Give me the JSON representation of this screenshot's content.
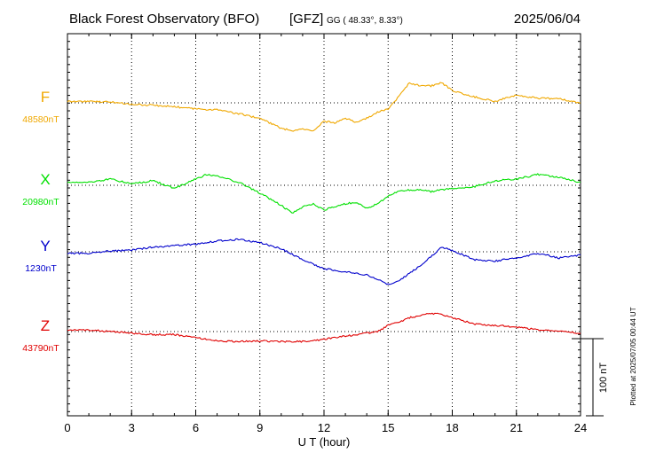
{
  "header": {
    "title": "Black Forest Observatory (BFO)",
    "institute": "[GFZ]",
    "coords": "GG ( 48.33°,   8.33°)",
    "date": "2025/06/04"
  },
  "footer": {
    "xlabel": "U T (hour)",
    "plotted_note": "Plotted at 2025/07/05 00:44 UT",
    "scale_label": "100 nT"
  },
  "chart_data": {
    "type": "line",
    "title": "Black Forest Observatory (BFO)",
    "xlabel": "U T (hour)",
    "ylabel": "",
    "xlim": [
      0,
      24
    ],
    "x_ticks": [
      0,
      3,
      6,
      9,
      12,
      15,
      18,
      21,
      24
    ],
    "x_tick_labels": [
      "0",
      "3",
      "6",
      "9",
      "12",
      "15",
      "18",
      "21",
      "24"
    ],
    "y_unit": "nT",
    "scale_bar_nT": 100,
    "grid": true,
    "series": [
      {
        "name": "F",
        "baseline_label": "48580nT",
        "baseline_nT": 48580,
        "color": "#f0a800",
        "points": [
          [
            0,
            48582
          ],
          [
            1,
            48582
          ],
          [
            2,
            48581
          ],
          [
            3,
            48578
          ],
          [
            4,
            48577
          ],
          [
            5,
            48575
          ],
          [
            6,
            48572
          ],
          [
            7,
            48571
          ],
          [
            8,
            48566
          ],
          [
            9,
            48560
          ],
          [
            10,
            48547
          ],
          [
            10.5,
            48544
          ],
          [
            11,
            48546
          ],
          [
            11.5,
            48543
          ],
          [
            12,
            48556
          ],
          [
            12.5,
            48554
          ],
          [
            13,
            48560
          ],
          [
            13.5,
            48555
          ],
          [
            14,
            48560
          ],
          [
            14.5,
            48568
          ],
          [
            15,
            48572
          ],
          [
            15.5,
            48588
          ],
          [
            16,
            48606
          ],
          [
            16.5,
            48602
          ],
          [
            17,
            48602
          ],
          [
            17.5,
            48606
          ],
          [
            18,
            48596
          ],
          [
            18.5,
            48592
          ],
          [
            19,
            48588
          ],
          [
            20,
            48582
          ],
          [
            21,
            48590
          ],
          [
            22,
            48586
          ],
          [
            23,
            48585
          ],
          [
            24,
            48580
          ]
        ]
      },
      {
        "name": "X",
        "baseline_label": "20980nT",
        "baseline_nT": 20980,
        "color": "#00e000",
        "points": [
          [
            0,
            20984
          ],
          [
            1,
            20984
          ],
          [
            2,
            20988
          ],
          [
            3,
            20982
          ],
          [
            4,
            20986
          ],
          [
            5,
            20976
          ],
          [
            6,
            20988
          ],
          [
            6.5,
            20994
          ],
          [
            7,
            20992
          ],
          [
            8,
            20984
          ],
          [
            9,
            20970
          ],
          [
            10,
            20954
          ],
          [
            10.5,
            20944
          ],
          [
            11,
            20952
          ],
          [
            11.5,
            20956
          ],
          [
            12,
            20948
          ],
          [
            13,
            20956
          ],
          [
            13.5,
            20958
          ],
          [
            14,
            20950
          ],
          [
            14.5,
            20956
          ],
          [
            15,
            20966
          ],
          [
            15.5,
            20972
          ],
          [
            16,
            20974
          ],
          [
            16.5,
            20974
          ],
          [
            17,
            20972
          ],
          [
            17.5,
            20974
          ],
          [
            18,
            20976
          ],
          [
            19,
            20978
          ],
          [
            20,
            20986
          ],
          [
            21,
            20988
          ],
          [
            22,
            20994
          ],
          [
            23,
            20990
          ],
          [
            24,
            20984
          ]
        ]
      },
      {
        "name": "Y",
        "baseline_label": "1230nT",
        "baseline_nT": 1230,
        "color": "#0000cc",
        "points": [
          [
            0,
            1228
          ],
          [
            1,
            1228
          ],
          [
            2,
            1231
          ],
          [
            3,
            1232
          ],
          [
            4,
            1236
          ],
          [
            5,
            1238
          ],
          [
            6,
            1240
          ],
          [
            7,
            1244
          ],
          [
            8,
            1246
          ],
          [
            9,
            1242
          ],
          [
            10,
            1234
          ],
          [
            11,
            1220
          ],
          [
            12,
            1208
          ],
          [
            13,
            1204
          ],
          [
            14,
            1200
          ],
          [
            14.5,
            1194
          ],
          [
            15,
            1188
          ],
          [
            15.5,
            1192
          ],
          [
            16,
            1202
          ],
          [
            16.5,
            1212
          ],
          [
            17,
            1224
          ],
          [
            17.5,
            1236
          ],
          [
            18,
            1232
          ],
          [
            19,
            1220
          ],
          [
            20,
            1218
          ],
          [
            21,
            1222
          ],
          [
            22,
            1228
          ],
          [
            23,
            1222
          ],
          [
            24,
            1226
          ]
        ]
      },
      {
        "name": "Z",
        "baseline_label": "43790nT",
        "baseline_nT": 43790,
        "color": "#e00000",
        "points": [
          [
            0,
            43792
          ],
          [
            1,
            43792
          ],
          [
            2,
            43790
          ],
          [
            3,
            43788
          ],
          [
            4,
            43786
          ],
          [
            5,
            43786
          ],
          [
            6,
            43782
          ],
          [
            7,
            43778
          ],
          [
            8,
            43777
          ],
          [
            9,
            43778
          ],
          [
            10,
            43777
          ],
          [
            11,
            43777
          ],
          [
            12,
            43780
          ],
          [
            13,
            43784
          ],
          [
            14,
            43788
          ],
          [
            14.5,
            43790
          ],
          [
            15,
            43798
          ],
          [
            15.5,
            43802
          ],
          [
            16,
            43808
          ],
          [
            16.5,
            43810
          ],
          [
            17,
            43814
          ],
          [
            17.5,
            43812
          ],
          [
            18,
            43808
          ],
          [
            19,
            43800
          ],
          [
            20,
            43798
          ],
          [
            21,
            43796
          ],
          [
            22,
            43792
          ],
          [
            23,
            43790
          ],
          [
            24,
            43788
          ]
        ]
      }
    ]
  }
}
